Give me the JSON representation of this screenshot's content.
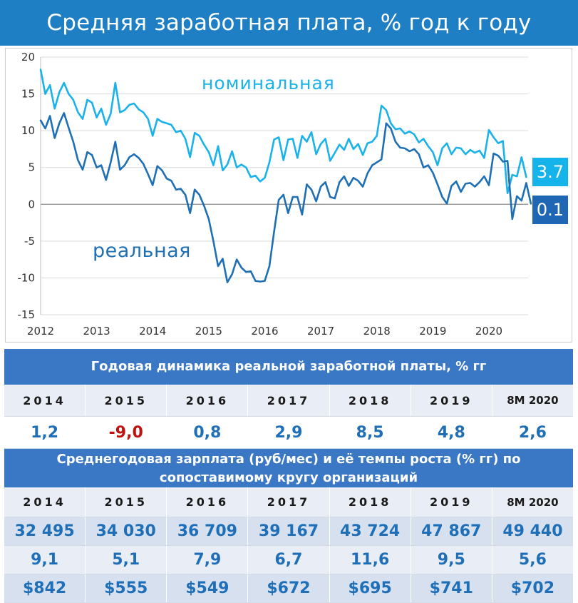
{
  "header": {
    "title": "Средняя заработная плата, % год к году"
  },
  "chart_data": {
    "type": "line",
    "x_tick_labels": [
      "2012",
      "2013",
      "2014",
      "2015",
      "2016",
      "2017",
      "2018",
      "2019",
      "2020"
    ],
    "x_range": [
      2012,
      2020.7
    ],
    "ylim": [
      -15,
      20
    ],
    "y_ticks": [
      -15,
      -10,
      -5,
      0,
      5,
      10,
      15,
      20
    ],
    "y_tick_labels": [
      "-15",
      "-10",
      "-5",
      "0",
      "5",
      "10",
      "15",
      "20"
    ],
    "series": [
      {
        "name": "номинальная",
        "color": "#1ab2ea",
        "end_label": "3.7",
        "points": [
          [
            2012.0,
            18.3
          ],
          [
            2012.083,
            15.0
          ],
          [
            2012.167,
            16.2
          ],
          [
            2012.25,
            13.0
          ],
          [
            2012.333,
            15.2
          ],
          [
            2012.417,
            16.5
          ],
          [
            2012.5,
            15.0
          ],
          [
            2012.583,
            14.2
          ],
          [
            2012.667,
            12.5
          ],
          [
            2012.75,
            11.6
          ],
          [
            2012.833,
            14.2
          ],
          [
            2012.917,
            13.8
          ],
          [
            2013.0,
            11.8
          ],
          [
            2013.083,
            13.0
          ],
          [
            2013.167,
            10.8
          ],
          [
            2013.25,
            12.3
          ],
          [
            2013.333,
            16.5
          ],
          [
            2013.417,
            12.5
          ],
          [
            2013.5,
            12.8
          ],
          [
            2013.583,
            13.5
          ],
          [
            2013.667,
            13.7
          ],
          [
            2013.75,
            12.9
          ],
          [
            2013.833,
            12.5
          ],
          [
            2013.917,
            11.6
          ],
          [
            2014.0,
            9.3
          ],
          [
            2014.083,
            11.6
          ],
          [
            2014.167,
            11.2
          ],
          [
            2014.25,
            11.0
          ],
          [
            2014.333,
            10.8
          ],
          [
            2014.417,
            9.8
          ],
          [
            2014.5,
            10.0
          ],
          [
            2014.583,
            8.9
          ],
          [
            2014.667,
            6.4
          ],
          [
            2014.75,
            9.7
          ],
          [
            2014.833,
            9.3
          ],
          [
            2014.917,
            8.1
          ],
          [
            2015.0,
            7.1
          ],
          [
            2015.083,
            5.3
          ],
          [
            2015.167,
            7.9
          ],
          [
            2015.25,
            4.6
          ],
          [
            2015.333,
            5.4
          ],
          [
            2015.417,
            7.2
          ],
          [
            2015.5,
            5.0
          ],
          [
            2015.583,
            5.4
          ],
          [
            2015.667,
            5.0
          ],
          [
            2015.75,
            3.7
          ],
          [
            2015.833,
            3.9
          ],
          [
            2015.917,
            3.1
          ],
          [
            2016.0,
            3.6
          ],
          [
            2016.083,
            5.7
          ],
          [
            2016.167,
            8.8
          ],
          [
            2016.25,
            9.1
          ],
          [
            2016.333,
            6.0
          ],
          [
            2016.417,
            8.8
          ],
          [
            2016.5,
            8.9
          ],
          [
            2016.583,
            6.3
          ],
          [
            2016.667,
            9.3
          ],
          [
            2016.75,
            8.5
          ],
          [
            2016.833,
            9.8
          ],
          [
            2016.917,
            6.8
          ],
          [
            2017.0,
            8.2
          ],
          [
            2017.083,
            8.9
          ],
          [
            2017.167,
            5.9
          ],
          [
            2017.25,
            7.0
          ],
          [
            2017.333,
            8.1
          ],
          [
            2017.417,
            7.4
          ],
          [
            2017.5,
            8.9
          ],
          [
            2017.583,
            7.5
          ],
          [
            2017.667,
            8.2
          ],
          [
            2017.75,
            6.7
          ],
          [
            2017.833,
            8.3
          ],
          [
            2017.917,
            8.5
          ],
          [
            2018.0,
            9.3
          ],
          [
            2018.083,
            13.4
          ],
          [
            2018.167,
            12.8
          ],
          [
            2018.25,
            11.0
          ],
          [
            2018.333,
            10.2
          ],
          [
            2018.417,
            10.3
          ],
          [
            2018.5,
            9.6
          ],
          [
            2018.583,
            9.9
          ],
          [
            2018.667,
            9.5
          ],
          [
            2018.75,
            8.4
          ],
          [
            2018.833,
            8.9
          ],
          [
            2018.917,
            7.9
          ],
          [
            2019.0,
            7.1
          ],
          [
            2019.083,
            5.3
          ],
          [
            2019.167,
            7.6
          ],
          [
            2019.25,
            8.3
          ],
          [
            2019.333,
            6.8
          ],
          [
            2019.417,
            7.7
          ],
          [
            2019.5,
            7.6
          ],
          [
            2019.583,
            6.8
          ],
          [
            2019.667,
            7.4
          ],
          [
            2019.75,
            7.0
          ],
          [
            2019.833,
            7.3
          ],
          [
            2019.917,
            6.3
          ],
          [
            2020.0,
            10.1
          ],
          [
            2020.083,
            9.1
          ],
          [
            2020.167,
            8.3
          ],
          [
            2020.25,
            8.6
          ],
          [
            2020.333,
            1.5
          ],
          [
            2020.417,
            4.0
          ],
          [
            2020.5,
            3.8
          ],
          [
            2020.583,
            6.4
          ],
          [
            2020.667,
            3.7
          ]
        ]
      },
      {
        "name": "реальная",
        "color": "#1f6fb5",
        "end_label": "0.1",
        "points": [
          [
            2012.0,
            11.4
          ],
          [
            2012.083,
            10.3
          ],
          [
            2012.167,
            12.0
          ],
          [
            2012.25,
            9.0
          ],
          [
            2012.333,
            11.0
          ],
          [
            2012.417,
            12.4
          ],
          [
            2012.5,
            10.4
          ],
          [
            2012.583,
            8.5
          ],
          [
            2012.667,
            6.0
          ],
          [
            2012.75,
            4.7
          ],
          [
            2012.833,
            7.1
          ],
          [
            2012.917,
            6.7
          ],
          [
            2013.0,
            5.0
          ],
          [
            2013.083,
            5.3
          ],
          [
            2013.167,
            3.3
          ],
          [
            2013.25,
            5.7
          ],
          [
            2013.333,
            8.5
          ],
          [
            2013.417,
            4.7
          ],
          [
            2013.5,
            5.3
          ],
          [
            2013.583,
            6.4
          ],
          [
            2013.667,
            6.8
          ],
          [
            2013.75,
            6.3
          ],
          [
            2013.833,
            5.5
          ],
          [
            2013.917,
            4.1
          ],
          [
            2014.0,
            2.6
          ],
          [
            2014.083,
            5.2
          ],
          [
            2014.167,
            4.6
          ],
          [
            2014.25,
            3.5
          ],
          [
            2014.333,
            3.2
          ],
          [
            2014.417,
            2.0
          ],
          [
            2014.5,
            2.1
          ],
          [
            2014.583,
            1.3
          ],
          [
            2014.667,
            -1.2
          ],
          [
            2014.75,
            2.0
          ],
          [
            2014.833,
            1.3
          ],
          [
            2014.917,
            -0.2
          ],
          [
            2015.0,
            -2.0
          ],
          [
            2015.083,
            -5.0
          ],
          [
            2015.167,
            -8.4
          ],
          [
            2015.25,
            -7.4
          ],
          [
            2015.333,
            -10.6
          ],
          [
            2015.417,
            -9.5
          ],
          [
            2015.5,
            -7.5
          ],
          [
            2015.583,
            -8.6
          ],
          [
            2015.667,
            -9.2
          ],
          [
            2015.75,
            -9.1
          ],
          [
            2015.833,
            -10.4
          ],
          [
            2015.917,
            -10.5
          ],
          [
            2016.0,
            -10.4
          ],
          [
            2016.083,
            -8.4
          ],
          [
            2016.167,
            -3.7
          ],
          [
            2016.25,
            0.6
          ],
          [
            2016.333,
            1.3
          ],
          [
            2016.417,
            -1.2
          ],
          [
            2016.5,
            1.0
          ],
          [
            2016.583,
            1.0
          ],
          [
            2016.667,
            -1.4
          ],
          [
            2016.75,
            2.7
          ],
          [
            2016.833,
            2.0
          ],
          [
            2016.917,
            0.4
          ],
          [
            2017.0,
            2.4
          ],
          [
            2017.083,
            3.0
          ],
          [
            2017.167,
            1.0
          ],
          [
            2017.25,
            0.8
          ],
          [
            2017.333,
            3.0
          ],
          [
            2017.417,
            3.8
          ],
          [
            2017.5,
            2.5
          ],
          [
            2017.583,
            3.6
          ],
          [
            2017.667,
            3.2
          ],
          [
            2017.75,
            2.4
          ],
          [
            2017.833,
            4.2
          ],
          [
            2017.917,
            5.3
          ],
          [
            2018.0,
            5.7
          ],
          [
            2018.083,
            6.1
          ],
          [
            2018.167,
            11.0
          ],
          [
            2018.25,
            10.3
          ],
          [
            2018.333,
            8.5
          ],
          [
            2018.417,
            7.7
          ],
          [
            2018.5,
            7.6
          ],
          [
            2018.583,
            7.2
          ],
          [
            2018.667,
            7.5
          ],
          [
            2018.75,
            6.8
          ],
          [
            2018.833,
            5.0
          ],
          [
            2018.917,
            5.3
          ],
          [
            2019.0,
            4.3
          ],
          [
            2019.083,
            2.7
          ],
          [
            2019.167,
            1.0
          ],
          [
            2019.25,
            0.1
          ],
          [
            2019.333,
            2.5
          ],
          [
            2019.417,
            3.1
          ],
          [
            2019.5,
            1.7
          ],
          [
            2019.583,
            2.8
          ],
          [
            2019.667,
            2.9
          ],
          [
            2019.75,
            2.4
          ],
          [
            2019.833,
            3.0
          ],
          [
            2019.917,
            3.8
          ],
          [
            2020.0,
            2.6
          ],
          [
            2020.083,
            6.9
          ],
          [
            2020.167,
            6.6
          ],
          [
            2020.25,
            5.8
          ],
          [
            2020.333,
            5.9
          ],
          [
            2020.417,
            -2.0
          ],
          [
            2020.5,
            1.1
          ],
          [
            2020.583,
            0.5
          ],
          [
            2020.667,
            2.9
          ],
          [
            2020.75,
            0.1
          ]
        ]
      }
    ],
    "grid": "horizontal"
  },
  "table1": {
    "title": "Годовая динамика реальной заработной платы, % гг",
    "years": [
      "2014",
      "2015",
      "2016",
      "2017",
      "2018",
      "2019",
      "8M 2020"
    ],
    "values": [
      "1,2",
      "-9,0",
      "0,8",
      "2,9",
      "8,5",
      "4,8",
      "2,6"
    ]
  },
  "table2": {
    "title_line1": "Среднегодовая зарплата (руб/мес) и её темпы роста (% гг)  по",
    "title_line2": "сопоставимому кругу организаций",
    "years": [
      "2014",
      "2015",
      "2016",
      "2017",
      "2018",
      "2019",
      "8M 2020"
    ],
    "salary_rub": [
      "32 495",
      "34 030",
      "36 709",
      "39 167",
      "43 724",
      "47 867",
      "49 440"
    ],
    "growth_pct": [
      "9,1",
      "5,1",
      "7,9",
      "6,7",
      "11,6",
      "9,5",
      "5,6"
    ],
    "salary_usd": [
      "$842",
      "$555",
      "$549",
      "$672",
      "$695",
      "$741",
      "$702"
    ]
  }
}
